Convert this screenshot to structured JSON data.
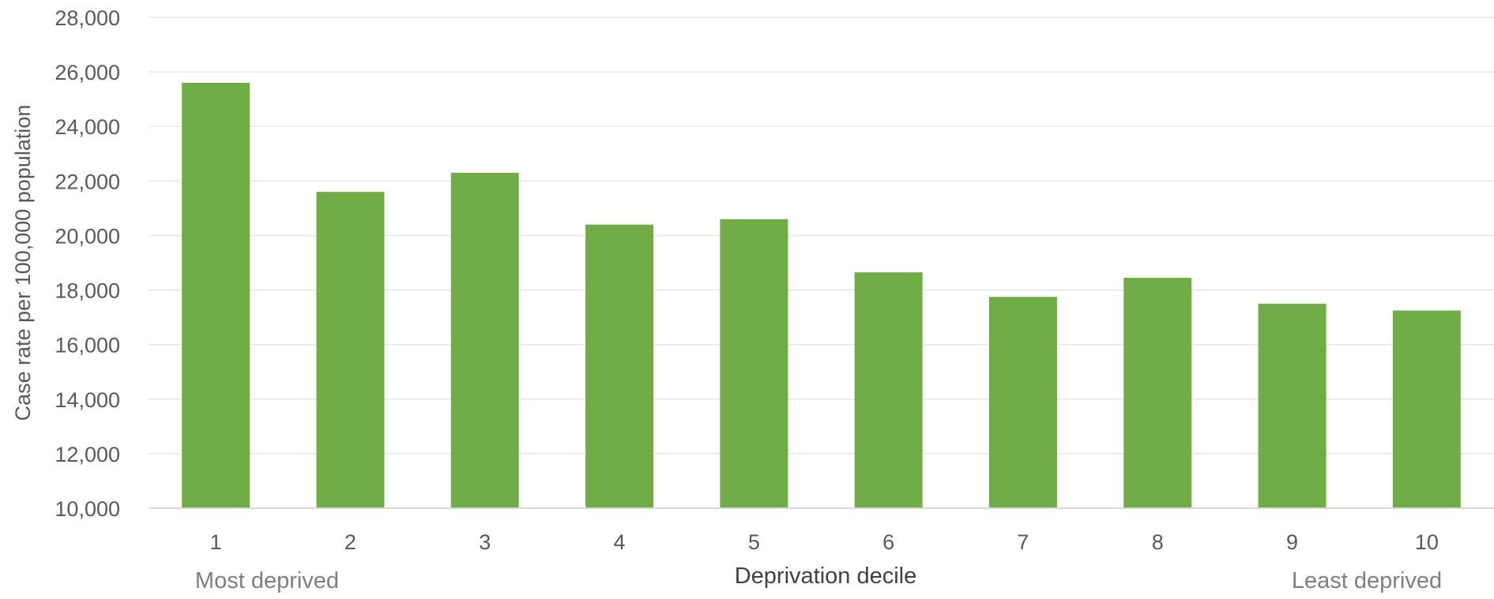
{
  "chart_data": {
    "type": "bar",
    "categories": [
      "1",
      "2",
      "3",
      "4",
      "5",
      "6",
      "7",
      "8",
      "9",
      "10"
    ],
    "values": [
      25600,
      21600,
      22300,
      20400,
      20600,
      18650,
      17750,
      18450,
      17500,
      17250
    ],
    "xlabel": "Deprivation decile",
    "ylabel": "Case rate per 100,000 population",
    "ylim": [
      10000,
      28000
    ],
    "yticks": [
      "10,000",
      "12,000",
      "14,000",
      "16,000",
      "18,000",
      "20,000",
      "22,000",
      "24,000",
      "26,000",
      "28,000"
    ],
    "annotations": {
      "left": "Most deprived",
      "right": "Least deprived"
    },
    "grid": true,
    "legend": "none",
    "colors": {
      "bar": "#70ad47",
      "grid": "#e6e6e6",
      "axis": "#d9d9d9"
    }
  }
}
